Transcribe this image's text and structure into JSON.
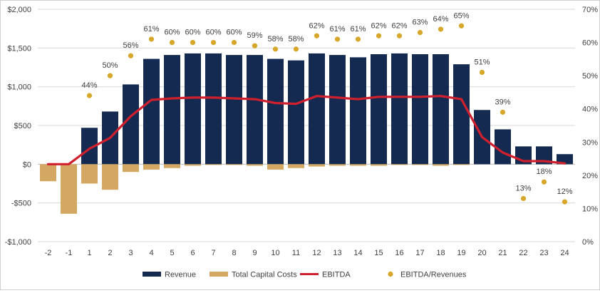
{
  "chart_data": {
    "type": "bar",
    "title": "",
    "categories": [
      "-2",
      "-1",
      "1",
      "2",
      "3",
      "4",
      "5",
      "6",
      "7",
      "8",
      "9",
      "10",
      "11",
      "12",
      "13",
      "14",
      "15",
      "16",
      "17",
      "18",
      "19",
      "20",
      "21",
      "22",
      "23",
      "24"
    ],
    "series": [
      {
        "name": "Revenue",
        "type": "bar",
        "axis": "left",
        "color": "#152a50",
        "values": [
          0,
          0,
          470,
          680,
          1030,
          1360,
          1410,
          1430,
          1430,
          1410,
          1410,
          1360,
          1340,
          1430,
          1410,
          1380,
          1420,
          1430,
          1420,
          1420,
          1290,
          700,
          450,
          230,
          230,
          130
        ]
      },
      {
        "name": "Total Capital Costs",
        "type": "bar",
        "axis": "left",
        "color": "#d4a862",
        "values": [
          -220,
          -640,
          -250,
          -330,
          -100,
          -70,
          -50,
          -20,
          -10,
          -10,
          -20,
          -70,
          -50,
          -30,
          -20,
          -20,
          -20,
          -10,
          -10,
          -20,
          -10,
          0,
          0,
          0,
          0,
          0
        ]
      },
      {
        "name": "EBITDA",
        "type": "line",
        "axis": "left",
        "color": "#d0202e",
        "values": [
          0,
          0,
          200,
          340,
          620,
          830,
          850,
          860,
          860,
          850,
          840,
          790,
          780,
          880,
          860,
          840,
          870,
          870,
          870,
          880,
          840,
          350,
          150,
          40,
          40,
          10
        ]
      },
      {
        "name": "EBITDA/Revenues",
        "type": "scatter",
        "axis": "right",
        "color": "#d6a72a",
        "values": [
          null,
          null,
          44,
          50,
          56,
          61,
          60,
          60,
          60,
          60,
          59,
          58,
          58,
          62,
          61,
          61,
          62,
          62,
          63,
          64,
          65,
          51,
          39,
          13,
          18,
          12
        ],
        "labels": [
          "",
          "",
          "44%",
          "50%",
          "56%",
          "61%",
          "60%",
          "60%",
          "60%",
          "60%",
          "59%",
          "58%",
          "58%",
          "62%",
          "61%",
          "61%",
          "62%",
          "62%",
          "63%",
          "64%",
          "65%",
          "51%",
          "39%",
          "13%",
          "18%",
          "12%"
        ]
      }
    ],
    "y_left": {
      "min": -1000,
      "max": 2000,
      "ticks": [
        -1000,
        -500,
        0,
        500,
        1000,
        1500,
        2000
      ],
      "tick_labels": [
        "-$1,000",
        "-$500",
        "$0",
        "$500",
        "$1,000",
        "$1,500",
        "$2,000"
      ]
    },
    "y_right": {
      "min": 0,
      "max": 70,
      "ticks": [
        0,
        10,
        20,
        30,
        40,
        50,
        60,
        70
      ],
      "tick_labels": [
        "0%",
        "10%",
        "20%",
        "30%",
        "40%",
        "50%",
        "60%",
        "70%"
      ]
    },
    "grid": true,
    "legend_position": "bottom",
    "legend": [
      {
        "label": "Revenue",
        "kind": "bar",
        "color": "#152a50"
      },
      {
        "label": "Total Capital Costs",
        "kind": "bar",
        "color": "#d4a862"
      },
      {
        "label": "EBITDA",
        "kind": "line",
        "color": "#d0202e"
      },
      {
        "label": "EBITDA/Revenues",
        "kind": "dot",
        "color": "#d6a72a"
      }
    ]
  }
}
